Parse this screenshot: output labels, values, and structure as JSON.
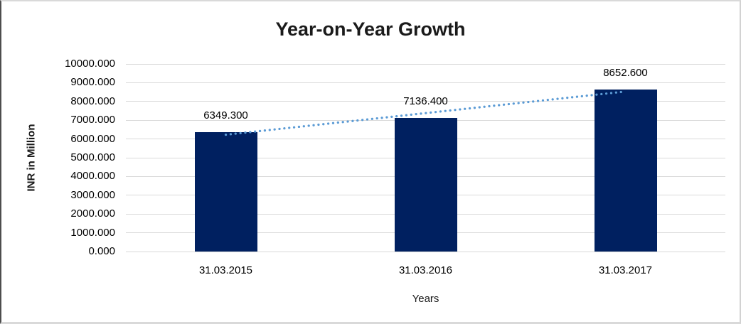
{
  "chart": {
    "title": "Year-on-Year Growth",
    "y_axis_title": "INR in Million",
    "x_axis_title": "Years"
  },
  "chart_data": {
    "type": "bar",
    "title": "Year-on-Year Growth",
    "xlabel": "Years",
    "ylabel": "INR in Million",
    "categories": [
      "31.03.2015",
      "31.03.2016",
      "31.03.2017"
    ],
    "values": [
      6349.3,
      7136.4,
      8652.6
    ],
    "data_labels": [
      "6349.300",
      "7136.400",
      "8652.600"
    ],
    "ylim": [
      0,
      10000
    ],
    "ytick_step": 1000,
    "ytick_labels": [
      "10000.000",
      "9000.000",
      "8000.000",
      "7000.000",
      "6000.000",
      "5000.000",
      "4000.000",
      "3000.000",
      "2000.000",
      "1000.000",
      "0.000"
    ],
    "grid": true,
    "legend": false,
    "colors": {
      "bar": "#002060",
      "trendline": "#5B9BD5",
      "gridline": "#d9d9d9",
      "text": "#000000"
    },
    "trendline": {
      "type": "linear",
      "style": "dotted"
    }
  }
}
